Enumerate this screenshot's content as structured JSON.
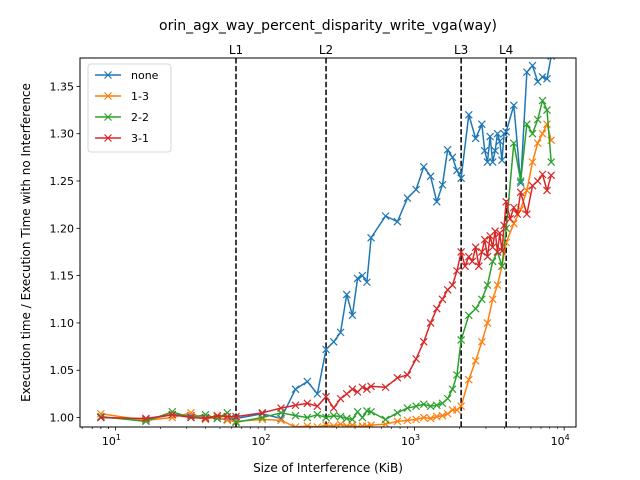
{
  "chart_data": {
    "type": "line",
    "title": "orin_agx_way_percent_disparity_write_vga(way)",
    "xlabel": "Size of Interference (KiB)",
    "ylabel": "Execution time / Execution Time with no Interference",
    "xscale": "log",
    "xlim": [
      5.8,
      12000
    ],
    "ylim": [
      0.99,
      1.38
    ],
    "grid": false,
    "legend": "top-left",
    "x_tick_labels": [
      {
        "value": 10,
        "base": "10",
        "exp": "1"
      },
      {
        "value": 100,
        "base": "10",
        "exp": "2"
      },
      {
        "value": 1000,
        "base": "10",
        "exp": "3"
      },
      {
        "value": 10000,
        "base": "10",
        "exp": "4"
      }
    ],
    "y_ticks": [
      1.0,
      1.05,
      1.1,
      1.15,
      1.2,
      1.25,
      1.3,
      1.35
    ],
    "y_tick_labels": [
      "1.00",
      "1.05",
      "1.10",
      "1.15",
      "1.20",
      "1.25",
      "1.30",
      "1.35"
    ],
    "reference_lines": [
      {
        "label": "L1",
        "x": 64
      },
      {
        "label": "L2",
        "x": 256
      },
      {
        "label": "L3",
        "x": 2048
      },
      {
        "label": "L4",
        "x": 4096
      }
    ],
    "series": [
      {
        "name": "none",
        "color": "#1f77b4",
        "x": [
          8,
          16,
          24,
          32,
          40,
          48,
          56,
          64,
          96,
          128,
          160,
          192,
          224,
          256,
          288,
          320,
          352,
          384,
          416,
          448,
          480,
          512,
          640,
          768,
          896,
          1024,
          1152,
          1280,
          1408,
          1536,
          1664,
          1792,
          1920,
          2048,
          2304,
          2560,
          2816,
          2944,
          3072,
          3200,
          3328,
          3456,
          3584,
          3712,
          3840,
          3968,
          4096,
          4608,
          5120,
          5632,
          6144,
          6656,
          7168,
          7680,
          8192
        ],
        "y": [
          1.0,
          0.998,
          1.003,
          1.002,
          1.0,
          0.999,
          0.998,
          0.999,
          1.004,
          0.999,
          1.03,
          1.038,
          1.025,
          1.072,
          1.08,
          1.09,
          1.13,
          1.108,
          1.147,
          1.15,
          1.143,
          1.19,
          1.213,
          1.207,
          1.232,
          1.241,
          1.265,
          1.255,
          1.228,
          1.246,
          1.283,
          1.275,
          1.261,
          1.253,
          1.32,
          1.295,
          1.31,
          1.282,
          1.27,
          1.297,
          1.27,
          1.282,
          1.3,
          1.292,
          1.272,
          1.3,
          1.302,
          1.33,
          1.248,
          1.365,
          1.372,
          1.355,
          1.36,
          1.358,
          1.382
        ]
      },
      {
        "name": "1-3",
        "color": "#ff7f0e",
        "x": [
          8,
          16,
          24,
          32,
          40,
          48,
          56,
          64,
          96,
          128,
          160,
          192,
          224,
          256,
          288,
          320,
          352,
          384,
          416,
          448,
          480,
          512,
          640,
          768,
          896,
          1024,
          1152,
          1280,
          1408,
          1536,
          1664,
          1792,
          1920,
          2048,
          2304,
          2560,
          2816,
          3072,
          3328,
          3584,
          3840,
          4096,
          4608,
          5120,
          5632,
          6144,
          6656,
          7168,
          7680,
          8192
        ],
        "y": [
          1.004,
          0.997,
          1.0,
          1.005,
          0.998,
          1.001,
          0.997,
          0.996,
          0.998,
          0.997,
          0.99,
          0.991,
          0.99,
          0.992,
          0.991,
          0.993,
          0.991,
          0.992,
          0.99,
          0.991,
          0.991,
          0.992,
          0.993,
          0.996,
          0.997,
          0.998,
          1.0,
          0.999,
          1.001,
          1.002,
          1.004,
          1.008,
          1.008,
          1.012,
          1.04,
          1.06,
          1.08,
          1.1,
          1.125,
          1.14,
          1.16,
          1.185,
          1.205,
          1.22,
          1.24,
          1.27,
          1.29,
          1.3,
          1.31,
          1.293
        ]
      },
      {
        "name": "2-2",
        "color": "#2ca02c",
        "x": [
          8,
          16,
          24,
          32,
          40,
          48,
          56,
          64,
          96,
          128,
          160,
          192,
          224,
          256,
          288,
          320,
          352,
          384,
          416,
          448,
          480,
          512,
          640,
          768,
          896,
          1024,
          1152,
          1280,
          1408,
          1536,
          1664,
          1792,
          1920,
          2048,
          2304,
          2560,
          2816,
          3072,
          3328,
          3584,
          3840,
          4096,
          4608,
          5120,
          5632,
          6144,
          6656,
          7168,
          7680,
          8192
        ],
        "y": [
          1.001,
          0.996,
          1.006,
          1.0,
          1.003,
          0.999,
          1.005,
          0.995,
          1.0,
          1.005,
          1.002,
          1.0,
          1.003,
          1.0,
          1.002,
          1.001,
          0.999,
          0.998,
          1.006,
          1.0,
          1.007,
          1.006,
          0.998,
          1.005,
          1.01,
          1.012,
          1.014,
          1.012,
          1.013,
          1.015,
          1.02,
          1.03,
          1.045,
          1.082,
          1.108,
          1.115,
          1.125,
          1.14,
          1.165,
          1.175,
          1.16,
          1.2,
          1.29,
          1.25,
          1.31,
          1.3,
          1.315,
          1.335,
          1.325,
          1.27
        ]
      },
      {
        "name": "3-1",
        "color": "#d62728",
        "x": [
          8,
          16,
          24,
          32,
          40,
          48,
          56,
          64,
          96,
          128,
          160,
          192,
          224,
          256,
          288,
          320,
          352,
          384,
          416,
          448,
          480,
          512,
          640,
          768,
          896,
          1024,
          1152,
          1280,
          1408,
          1536,
          1664,
          1792,
          1920,
          2048,
          2176,
          2304,
          2432,
          2560,
          2688,
          2816,
          2944,
          3072,
          3200,
          3328,
          3456,
          3584,
          3712,
          3840,
          3968,
          4096,
          4352,
          4608,
          4864,
          5120,
          5632,
          6144,
          6656,
          7168,
          7680,
          8192
        ],
        "y": [
          1.0,
          0.999,
          1.003,
          1.0,
          0.999,
          1.002,
          1.001,
          1.001,
          1.005,
          1.01,
          1.013,
          1.015,
          1.012,
          1.022,
          1.01,
          1.02,
          1.025,
          1.03,
          1.027,
          1.032,
          1.03,
          1.033,
          1.032,
          1.042,
          1.045,
          1.062,
          1.08,
          1.1,
          1.115,
          1.125,
          1.135,
          1.14,
          1.155,
          1.175,
          1.16,
          1.17,
          1.165,
          1.18,
          1.16,
          1.175,
          1.188,
          1.17,
          1.192,
          1.18,
          1.197,
          1.175,
          1.195,
          1.176,
          1.203,
          1.228,
          1.21,
          1.222,
          1.215,
          1.238,
          1.215,
          1.245,
          1.25,
          1.257,
          1.24,
          1.256
        ]
      }
    ]
  }
}
